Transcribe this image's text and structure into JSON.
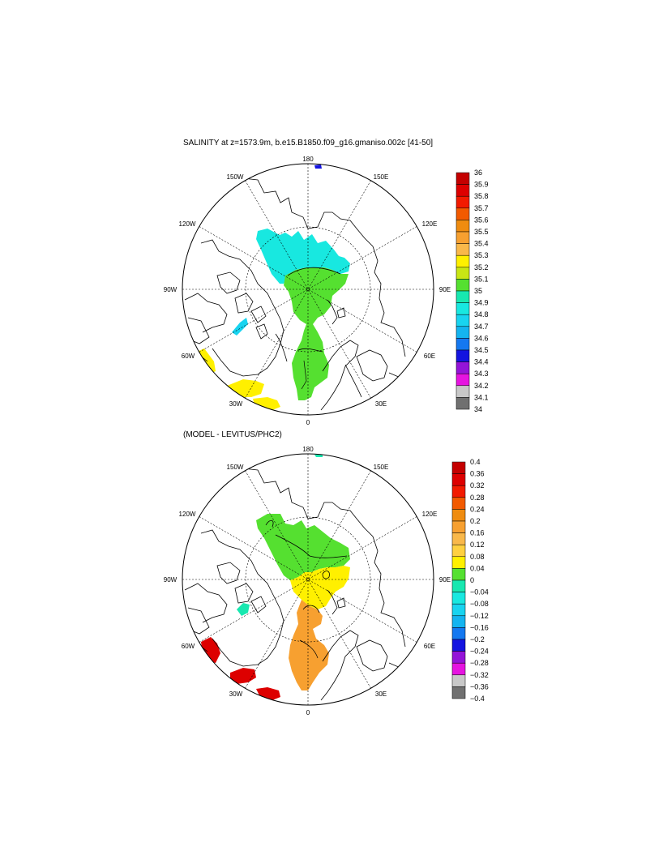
{
  "panels": [
    {
      "title": "SALINITY at z=1573.9m, b.e15.B1850.f09_g16.gmaniso.002c [41-50]",
      "lon_labels": [
        "180",
        "150E",
        "120E",
        "90E",
        "60E",
        "30E",
        "0",
        "30W",
        "60W",
        "90W",
        "120W",
        "150W"
      ],
      "colorbar": {
        "labels": [
          "36",
          "35.9",
          "35.8",
          "35.7",
          "35.6",
          "35.5",
          "35.4",
          "35.3",
          "35.2",
          "35.1",
          "35",
          "34.9",
          "34.8",
          "34.7",
          "34.6",
          "34.5",
          "34.4",
          "34.3",
          "34.2",
          "34.1",
          "34"
        ],
        "colors": [
          "#c40000",
          "#dd0000",
          "#f21a00",
          "#f25a00",
          "#ef8c10",
          "#f7a030",
          "#f9b84a",
          "#fff000",
          "#c8e614",
          "#55e030",
          "#18e8b0",
          "#18e8e0",
          "#18d4f0",
          "#14b4f0",
          "#1478f0",
          "#1414e0",
          "#9414d8",
          "#e614e0",
          "#c8c8c8",
          "#707070"
        ]
      },
      "regions": [
        {
          "name": "cyan-region",
          "color": "#18e8e0"
        },
        {
          "name": "green-region",
          "color": "#55e030"
        },
        {
          "name": "yellow-region",
          "color": "#fff000"
        },
        {
          "name": "light-blue-region",
          "color": "#18d4f0"
        },
        {
          "name": "blue-region",
          "color": "#1414e0"
        }
      ]
    },
    {
      "title": "(MODEL - LEVITUS/PHC2)",
      "lon_labels": [
        "180",
        "150E",
        "120E",
        "90E",
        "60E",
        "30E",
        "0",
        "30W",
        "60W",
        "90W",
        "120W",
        "150W"
      ],
      "colorbar": {
        "labels": [
          "0.4",
          "0.36",
          "0.32",
          "0.28",
          "0.24",
          "0.2",
          "0.16",
          "0.12",
          "0.08",
          "0.04",
          "0",
          "−0.04",
          "−0.08",
          "−0.12",
          "−0.16",
          "−0.2",
          "−0.24",
          "−0.28",
          "−0.32",
          "−0.36",
          "−0.4"
        ],
        "colors": [
          "#c40000",
          "#dd0000",
          "#f21a00",
          "#f25a00",
          "#ef8c10",
          "#f7a030",
          "#f9b84a",
          "#ffd040",
          "#fff000",
          "#55e030",
          "#18e8b0",
          "#18e8e0",
          "#18d4f0",
          "#14b4f0",
          "#1478f0",
          "#1414e0",
          "#9414d8",
          "#e614e0",
          "#c8c8c8",
          "#707070"
        ]
      },
      "regions": [
        {
          "name": "green-region",
          "color": "#55e030"
        },
        {
          "name": "yellow-region",
          "color": "#fff000"
        },
        {
          "name": "orange-region",
          "color": "#f7a030"
        },
        {
          "name": "red-region",
          "color": "#dd0000"
        },
        {
          "name": "cyan-region",
          "color": "#18e8b0"
        }
      ]
    }
  ]
}
